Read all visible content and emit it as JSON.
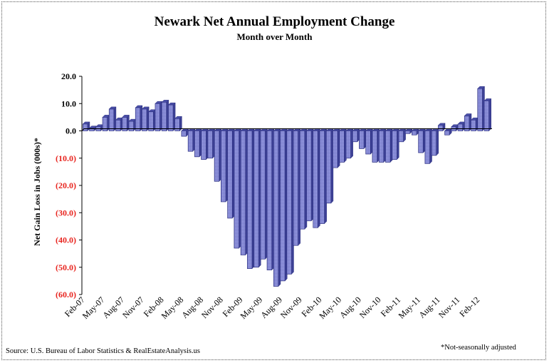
{
  "chart_data": {
    "type": "bar",
    "title": "Newark Net Annual Employment Change",
    "subtitle": "Month over Month",
    "ylabel": "Net Gain Loss in Jobs (000s)*",
    "xlabel": "",
    "source": "Source: U.S. Bureau of Labor Statistics & RealEstateAnalysis.us",
    "footnote": "*Not-seasonally adjusted",
    "ylim": [
      -60,
      20
    ],
    "y_ticks": [
      20,
      10,
      0,
      -10,
      -20,
      -30,
      -40,
      -50,
      -60
    ],
    "y_tick_labels": [
      "20.0",
      "10.0",
      "0.0",
      "(10.0)",
      "(20.0)",
      "(30.0)",
      "(40.0)",
      "(50.0)",
      "(60.0)"
    ],
    "x_tick_labels": [
      {
        "label": "Feb-07",
        "index": 0
      },
      {
        "label": "May-07",
        "index": 3
      },
      {
        "label": "Aug-07",
        "index": 6
      },
      {
        "label": "Nov-07",
        "index": 9
      },
      {
        "label": "Feb-08",
        "index": 12
      },
      {
        "label": "May-08",
        "index": 15
      },
      {
        "label": "Aug-08",
        "index": 18
      },
      {
        "label": "Nov-08",
        "index": 21
      },
      {
        "label": "Feb-09",
        "index": 24
      },
      {
        "label": "May-09",
        "index": 27
      },
      {
        "label": "Aug-09",
        "index": 30
      },
      {
        "label": "Nov-09",
        "index": 33
      },
      {
        "label": "Feb-10",
        "index": 36
      },
      {
        "label": "May-10",
        "index": 39
      },
      {
        "label": "Aug-10",
        "index": 42
      },
      {
        "label": "Nov-10",
        "index": 45
      },
      {
        "label": "Feb-11",
        "index": 48
      },
      {
        "label": "May-11",
        "index": 51
      },
      {
        "label": "Aug-11",
        "index": 54
      },
      {
        "label": "Nov-11",
        "index": 57
      },
      {
        "label": "Feb-12",
        "index": 60
      }
    ],
    "categories": [
      "Feb-07",
      "Mar-07",
      "Apr-07",
      "May-07",
      "Jun-07",
      "Jul-07",
      "Aug-07",
      "Sep-07",
      "Oct-07",
      "Nov-07",
      "Dec-07",
      "Jan-08",
      "Feb-08",
      "Mar-08",
      "Apr-08",
      "May-08",
      "Jun-08",
      "Jul-08",
      "Aug-08",
      "Sep-08",
      "Oct-08",
      "Nov-08",
      "Dec-08",
      "Jan-09",
      "Feb-09",
      "Mar-09",
      "Apr-09",
      "May-09",
      "Jun-09",
      "Jul-09",
      "Aug-09",
      "Sep-09",
      "Oct-09",
      "Nov-09",
      "Dec-09",
      "Jan-10",
      "Feb-10",
      "Mar-10",
      "Apr-10",
      "May-10",
      "Jun-10",
      "Jul-10",
      "Aug-10",
      "Sep-10",
      "Oct-10",
      "Nov-10",
      "Dec-10",
      "Jan-11",
      "Feb-11",
      "Mar-11",
      "Apr-11",
      "May-11",
      "Jun-11",
      "Jul-11",
      "Aug-11",
      "Sep-11",
      "Oct-11",
      "Nov-11",
      "Dec-11",
      "Jan-12",
      "Feb-12",
      "Mar-12"
    ],
    "values": [
      2.5,
      1.0,
      1.5,
      5.0,
      8.0,
      4.0,
      5.0,
      3.5,
      8.5,
      8.0,
      7.0,
      10.0,
      10.5,
      9.5,
      4.5,
      -2.0,
      -7.5,
      -9.5,
      -10.5,
      -10.0,
      -18.5,
      -26.0,
      -32.0,
      -43.0,
      -45.5,
      -50.5,
      -50.0,
      -47.0,
      -51.0,
      -57.0,
      -55.0,
      -52.5,
      -42.0,
      -36.0,
      -33.0,
      -35.5,
      -34.0,
      -26.5,
      -13.5,
      -11.5,
      -10.0,
      -4.0,
      -6.5,
      -8.5,
      -11.5,
      -11.5,
      -11.5,
      -10.5,
      -4.0,
      -1.0,
      -1.5,
      -8.0,
      -12.0,
      -9.0,
      2.0,
      -1.5,
      1.5,
      2.5,
      5.5,
      4.0,
      15.5,
      11.0
    ],
    "bar_color": "#7b7fcc",
    "bar_edge_color": "#2b2f80",
    "negative_tick_color": "#e8251f",
    "grid": false
  }
}
